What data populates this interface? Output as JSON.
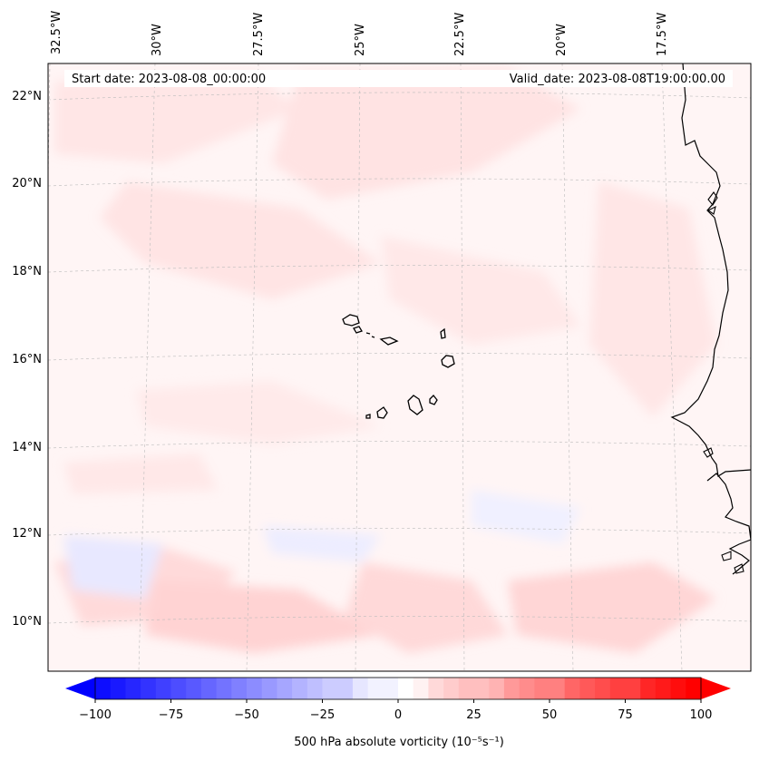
{
  "header": {
    "start_label": "Start date: 2023-08-08_00:00:00",
    "valid_label": "Valid_date: 2023-08-08T19:00:00.00"
  },
  "axes": {
    "lon_ticks": [
      "32.5°W",
      "30°W",
      "27.5°W",
      "25°W",
      "22.5°W",
      "20°W",
      "17.5°W"
    ],
    "lat_ticks": [
      "22°N",
      "20°N",
      "18°N",
      "16°N",
      "14°N",
      "12°N",
      "10°N"
    ]
  },
  "colorbar": {
    "ticks": [
      "−100",
      "−75",
      "−50",
      "−25",
      "0",
      "25",
      "50",
      "75",
      "100"
    ],
    "label": "500 hPa absolute vorticity (10⁻⁵s⁻¹)",
    "min_color": "#0000ff",
    "mid_color": "#ffffff",
    "max_color": "#ff0000"
  },
  "map_features": [
    "Cape Verde islands",
    "West African coastline"
  ]
}
